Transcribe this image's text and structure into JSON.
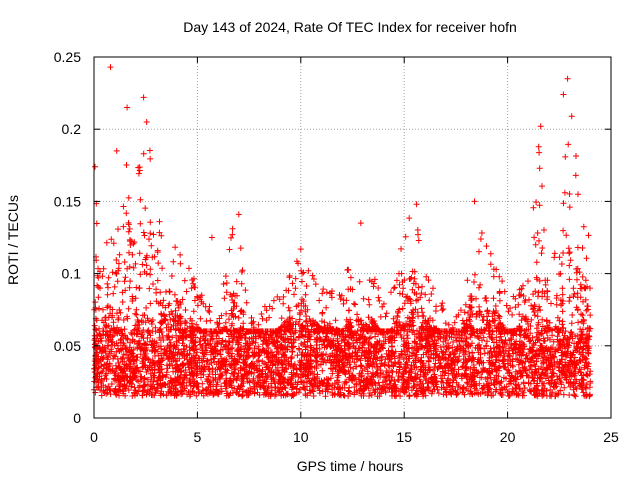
{
  "chart_data": {
    "type": "scatter",
    "title": "Day 143 of 2024, Rate Of TEC Index for receiver hofn",
    "xlabel": "GPS time / hours",
    "ylabel": "ROTI / TECUs",
    "xlim": [
      0,
      25
    ],
    "ylim": [
      0,
      0.25
    ],
    "x_ticks": [
      0,
      5,
      10,
      15,
      20,
      25
    ],
    "x_tick_labels": [
      "0",
      "5",
      "10",
      "15",
      "20",
      "25"
    ],
    "y_ticks": [
      0,
      0.05,
      0.1,
      0.15,
      0.2,
      0.25
    ],
    "y_tick_labels": [
      "0",
      "0.05",
      "0.1",
      "0.15",
      "0.2",
      "0.25"
    ],
    "grid": true,
    "marker": "+",
    "color": "#ff0000",
    "series": [
      {
        "name": "ROTI",
        "x_range_hours": [
          0,
          24
        ],
        "typical_band": [
          0.015,
          0.06
        ],
        "envelope_max": [
          [
            0.0,
            0.175
          ],
          [
            0.5,
            0.13
          ],
          [
            1.0,
            0.15
          ],
          [
            1.5,
            0.21
          ],
          [
            2.0,
            0.17
          ],
          [
            2.5,
            0.22
          ],
          [
            3.0,
            0.14
          ],
          [
            3.5,
            0.13
          ],
          [
            4.0,
            0.12
          ],
          [
            4.5,
            0.11
          ],
          [
            5.0,
            0.09
          ],
          [
            5.5,
            0.08
          ],
          [
            6.0,
            0.065
          ],
          [
            6.5,
            0.12
          ],
          [
            7.0,
            0.14
          ],
          [
            7.5,
            0.07
          ],
          [
            8.0,
            0.075
          ],
          [
            8.5,
            0.08
          ],
          [
            9.0,
            0.09
          ],
          [
            9.5,
            0.1
          ],
          [
            10.0,
            0.12
          ],
          [
            10.5,
            0.1
          ],
          [
            11.0,
            0.09
          ],
          [
            11.5,
            0.09
          ],
          [
            12.0,
            0.085
          ],
          [
            12.5,
            0.12
          ],
          [
            13.0,
            0.09
          ],
          [
            13.5,
            0.1
          ],
          [
            14.0,
            0.08
          ],
          [
            14.5,
            0.09
          ],
          [
            15.0,
            0.13
          ],
          [
            15.5,
            0.15
          ],
          [
            16.0,
            0.1
          ],
          [
            16.5,
            0.09
          ],
          [
            17.0,
            0.08
          ],
          [
            17.5,
            0.07
          ],
          [
            18.0,
            0.1
          ],
          [
            18.5,
            0.15
          ],
          [
            19.0,
            0.12
          ],
          [
            19.5,
            0.11
          ],
          [
            20.0,
            0.08
          ],
          [
            20.5,
            0.09
          ],
          [
            21.0,
            0.11
          ],
          [
            21.5,
            0.2
          ],
          [
            22.0,
            0.13
          ],
          [
            22.5,
            0.11
          ],
          [
            23.0,
            0.235
          ],
          [
            23.5,
            0.15
          ],
          [
            24.0,
            0.14
          ]
        ],
        "outliers": [
          [
            0.8,
            0.243
          ],
          [
            1.1,
            0.185
          ],
          [
            2.4,
            0.222
          ],
          [
            2.55,
            0.205
          ],
          [
            1.6,
            0.215
          ],
          [
            22.9,
            0.235
          ],
          [
            22.7,
            0.224
          ],
          [
            23.1,
            0.209
          ],
          [
            21.6,
            0.202
          ],
          [
            21.55,
            0.173
          ],
          [
            23.3,
            0.168
          ],
          [
            15.6,
            0.148
          ],
          [
            18.4,
            0.15
          ],
          [
            12.9,
            0.135
          ],
          [
            7.0,
            0.141
          ],
          [
            6.7,
            0.131
          ],
          [
            10.0,
            0.117
          ],
          [
            0.05,
            0.174
          ],
          [
            5.7,
            0.125
          ],
          [
            20.6,
            0.085
          ]
        ]
      }
    ]
  }
}
